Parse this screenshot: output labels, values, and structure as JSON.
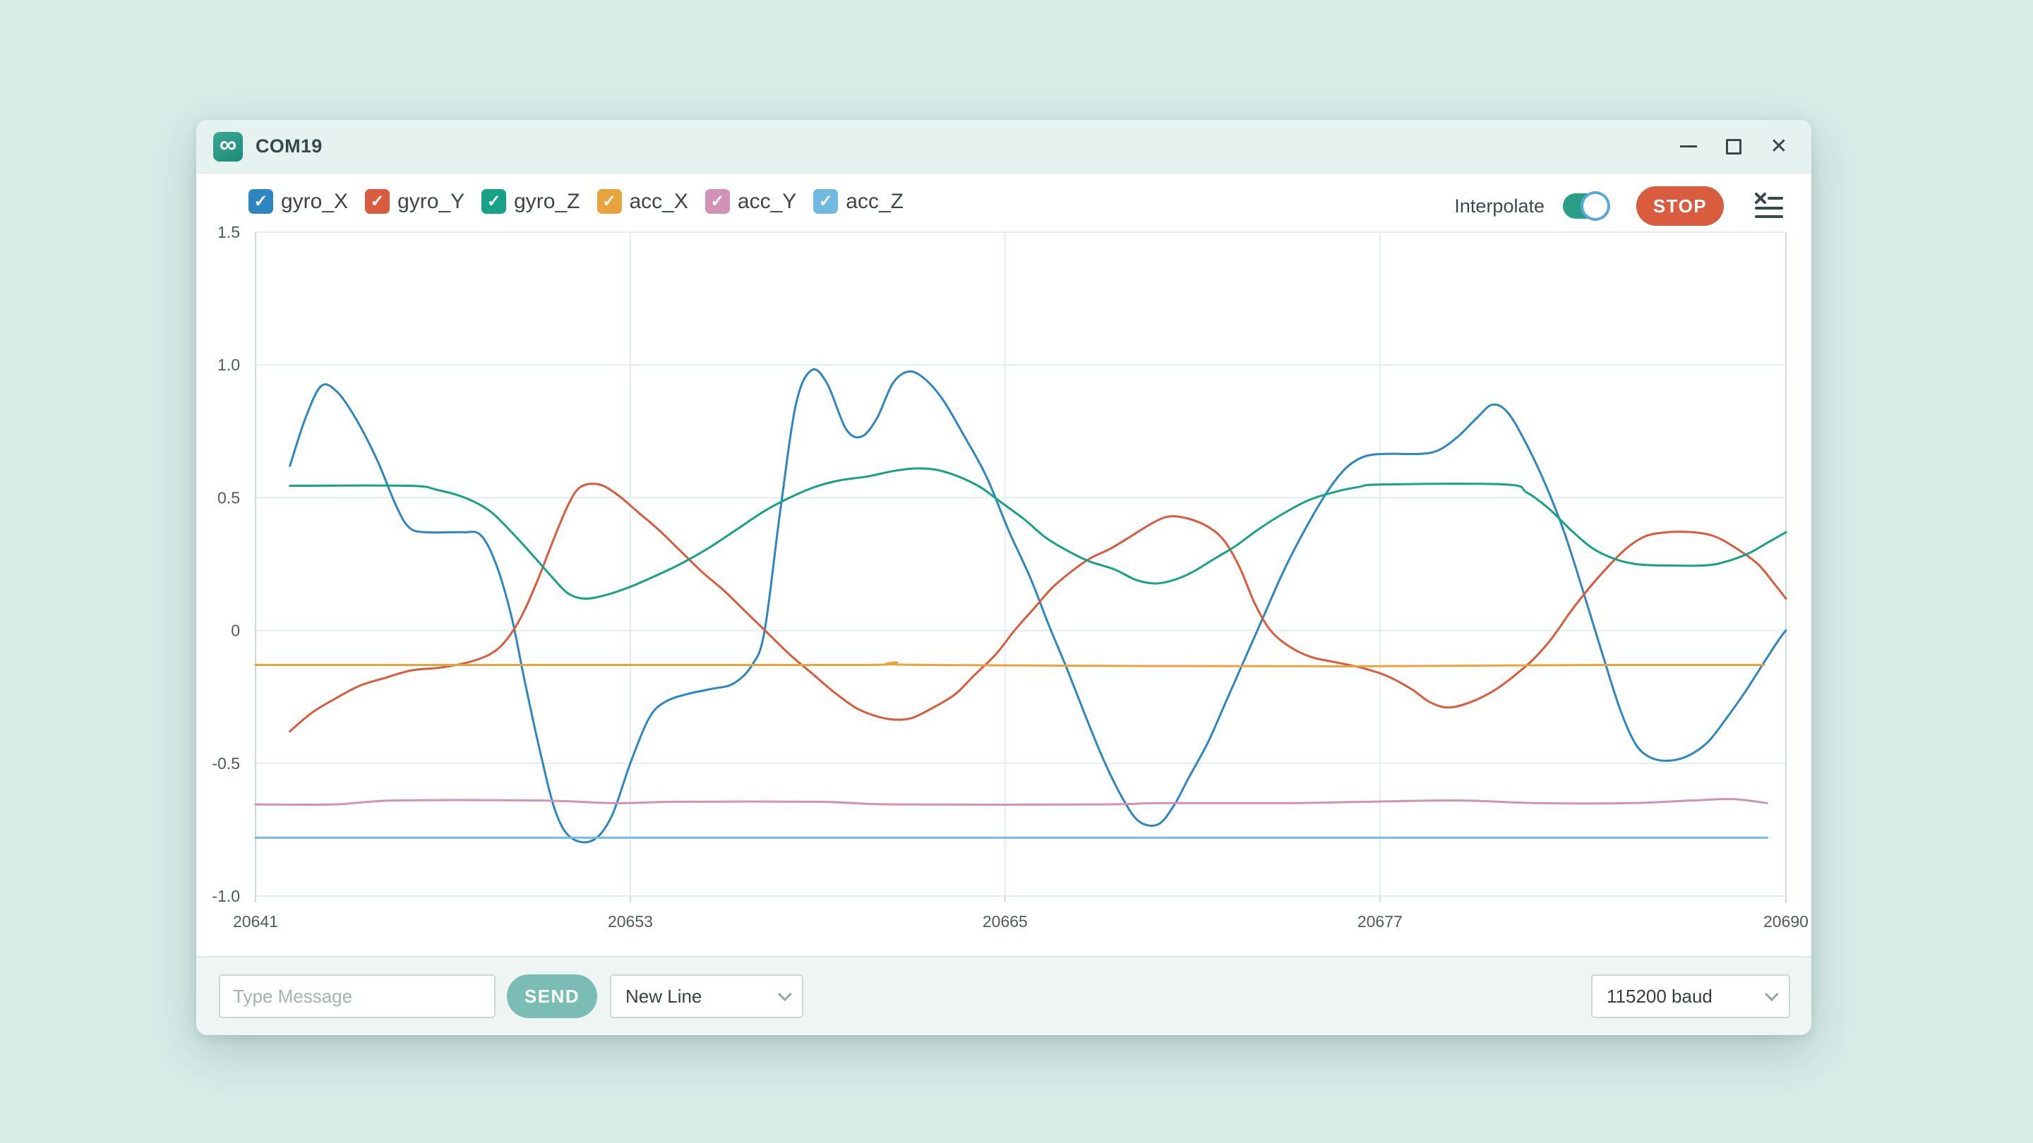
{
  "titlebar": {
    "title": "COM19"
  },
  "icons": {
    "app_symbol": "∞",
    "check_symbol": "✓",
    "close_symbol": "✕"
  },
  "toolbar": {
    "interpolate_label": "Interpolate",
    "interpolate_on": true,
    "stop_label": "STOP"
  },
  "bottom_bar": {
    "message_placeholder": "Type Message",
    "send_label": "SEND",
    "line_ending": "New Line",
    "baud": "115200 baud"
  },
  "colors": {
    "window_chrome": "#e6f2ef",
    "desktop": "#d8ece8",
    "grid": "#e4eeee",
    "axis": "#c9dcde",
    "tick_text": "#4e5b5e",
    "toggle_on": "#2a9f88",
    "stop_button": "#d85c3d",
    "send_button": "#79bdb4"
  },
  "chart_data": {
    "type": "line",
    "title": "",
    "xlabel": "",
    "ylabel": "",
    "grid": true,
    "legend_position": "top",
    "xlim": [
      20641,
      20690
    ],
    "ylim": [
      -1.0,
      1.5
    ],
    "xticks": [
      {
        "v": 20641,
        "label": "20641"
      },
      {
        "v": 20653,
        "label": "20653"
      },
      {
        "v": 20665,
        "label": "20665"
      },
      {
        "v": 20677,
        "label": "20677"
      },
      {
        "v": 20690,
        "label": "20690"
      }
    ],
    "yticks": [
      {
        "v": 1.5,
        "label": "1.5"
      },
      {
        "v": 1.0,
        "label": "1.0"
      },
      {
        "v": 0.5,
        "label": "0.5"
      },
      {
        "v": 0,
        "label": "0"
      },
      {
        "v": -0.5,
        "label": "-0.5"
      },
      {
        "v": -1.0,
        "label": "-1.0"
      }
    ],
    "series": [
      {
        "name": "gyro_X",
        "color": "#2e86c1",
        "checked": true,
        "points": [
          [
            20642.1,
            0.62
          ],
          [
            20642.6,
            0.8
          ],
          [
            20643.1,
            0.92
          ],
          [
            20643.6,
            0.9
          ],
          [
            20644.2,
            0.8
          ],
          [
            20644.9,
            0.64
          ],
          [
            20645.5,
            0.47
          ],
          [
            20645.9,
            0.39
          ],
          [
            20646.4,
            0.37
          ],
          [
            20647.6,
            0.37
          ],
          [
            20648.2,
            0.36
          ],
          [
            20648.7,
            0.25
          ],
          [
            20649.2,
            0.05
          ],
          [
            20649.6,
            -0.18
          ],
          [
            20650.1,
            -0.45
          ],
          [
            20650.6,
            -0.68
          ],
          [
            20651.1,
            -0.78
          ],
          [
            20651.8,
            -0.79
          ],
          [
            20652.4,
            -0.7
          ],
          [
            20653.0,
            -0.5
          ],
          [
            20653.6,
            -0.33
          ],
          [
            20654.1,
            -0.27
          ],
          [
            20654.8,
            -0.24
          ],
          [
            20655.6,
            -0.22
          ],
          [
            20656.3,
            -0.2
          ],
          [
            20656.9,
            -0.13
          ],
          [
            20657.3,
            0.0
          ],
          [
            20657.8,
            0.45
          ],
          [
            20658.3,
            0.85
          ],
          [
            20658.8,
            0.98
          ],
          [
            20659.3,
            0.93
          ],
          [
            20659.9,
            0.76
          ],
          [
            20660.4,
            0.73
          ],
          [
            20660.9,
            0.8
          ],
          [
            20661.4,
            0.93
          ],
          [
            20661.9,
            0.975
          ],
          [
            20662.4,
            0.95
          ],
          [
            20663.0,
            0.87
          ],
          [
            20663.7,
            0.73
          ],
          [
            20664.4,
            0.58
          ],
          [
            20665.1,
            0.38
          ],
          [
            20665.8,
            0.2
          ],
          [
            20666.4,
            0.02
          ],
          [
            20667.0,
            -0.15
          ],
          [
            20667.6,
            -0.33
          ],
          [
            20668.2,
            -0.5
          ],
          [
            20668.8,
            -0.64
          ],
          [
            20669.3,
            -0.72
          ],
          [
            20669.9,
            -0.73
          ],
          [
            20670.4,
            -0.66
          ],
          [
            20670.9,
            -0.55
          ],
          [
            20671.5,
            -0.42
          ],
          [
            20672.1,
            -0.26
          ],
          [
            20672.7,
            -0.1
          ],
          [
            20673.3,
            0.06
          ],
          [
            20673.9,
            0.22
          ],
          [
            20674.6,
            0.38
          ],
          [
            20675.3,
            0.52
          ],
          [
            20675.9,
            0.61
          ],
          [
            20676.5,
            0.655
          ],
          [
            20677.2,
            0.665
          ],
          [
            20678.3,
            0.665
          ],
          [
            20678.9,
            0.68
          ],
          [
            20679.5,
            0.73
          ],
          [
            20680.1,
            0.8
          ],
          [
            20680.6,
            0.85
          ],
          [
            20681.1,
            0.82
          ],
          [
            20681.7,
            0.7
          ],
          [
            20682.3,
            0.55
          ],
          [
            20682.9,
            0.37
          ],
          [
            20683.5,
            0.15
          ],
          [
            20684.1,
            -0.08
          ],
          [
            20684.7,
            -0.3
          ],
          [
            20685.2,
            -0.43
          ],
          [
            20685.7,
            -0.48
          ],
          [
            20686.3,
            -0.49
          ],
          [
            20686.9,
            -0.47
          ],
          [
            20687.5,
            -0.42
          ],
          [
            20688.1,
            -0.33
          ],
          [
            20688.7,
            -0.23
          ],
          [
            20689.3,
            -0.12
          ],
          [
            20689.8,
            -0.03
          ],
          [
            20690,
            0.0
          ]
        ]
      },
      {
        "name": "gyro_Y",
        "color": "#d85c3d",
        "checked": true,
        "points": [
          [
            20642.1,
            -0.38
          ],
          [
            20642.8,
            -0.31
          ],
          [
            20643.5,
            -0.26
          ],
          [
            20644.3,
            -0.21
          ],
          [
            20645.1,
            -0.18
          ],
          [
            20646.0,
            -0.15
          ],
          [
            20646.9,
            -0.14
          ],
          [
            20647.8,
            -0.12
          ],
          [
            20648.5,
            -0.09
          ],
          [
            20649.0,
            -0.04
          ],
          [
            20649.5,
            0.05
          ],
          [
            20650.0,
            0.18
          ],
          [
            20650.5,
            0.33
          ],
          [
            20651.0,
            0.47
          ],
          [
            20651.4,
            0.54
          ],
          [
            20652.0,
            0.55
          ],
          [
            20652.6,
            0.51
          ],
          [
            20653.2,
            0.45
          ],
          [
            20653.9,
            0.38
          ],
          [
            20654.6,
            0.3
          ],
          [
            20655.3,
            0.22
          ],
          [
            20656.0,
            0.15
          ],
          [
            20656.7,
            0.07
          ],
          [
            20657.4,
            -0.01
          ],
          [
            20658.1,
            -0.09
          ],
          [
            20658.8,
            -0.16
          ],
          [
            20659.5,
            -0.23
          ],
          [
            20660.2,
            -0.29
          ],
          [
            20660.8,
            -0.32
          ],
          [
            20661.4,
            -0.335
          ],
          [
            20662.0,
            -0.33
          ],
          [
            20662.7,
            -0.29
          ],
          [
            20663.4,
            -0.24
          ],
          [
            20664.0,
            -0.17
          ],
          [
            20664.7,
            -0.09
          ],
          [
            20665.3,
            0.0
          ],
          [
            20665.9,
            0.08
          ],
          [
            20666.5,
            0.16
          ],
          [
            20667.1,
            0.22
          ],
          [
            20667.7,
            0.27
          ],
          [
            20668.4,
            0.31
          ],
          [
            20669.1,
            0.36
          ],
          [
            20669.8,
            0.41
          ],
          [
            20670.3,
            0.43
          ],
          [
            20670.9,
            0.42
          ],
          [
            20671.5,
            0.39
          ],
          [
            20672.0,
            0.34
          ],
          [
            20672.5,
            0.24
          ],
          [
            20673.0,
            0.1
          ],
          [
            20673.5,
            0.0
          ],
          [
            20674.1,
            -0.06
          ],
          [
            20674.8,
            -0.1
          ],
          [
            20675.6,
            -0.12
          ],
          [
            20676.4,
            -0.14
          ],
          [
            20677.2,
            -0.17
          ],
          [
            20678.0,
            -0.22
          ],
          [
            20678.6,
            -0.27
          ],
          [
            20679.2,
            -0.29
          ],
          [
            20679.9,
            -0.27
          ],
          [
            20680.6,
            -0.23
          ],
          [
            20681.2,
            -0.18
          ],
          [
            20681.9,
            -0.11
          ],
          [
            20682.5,
            -0.03
          ],
          [
            20683.1,
            0.07
          ],
          [
            20683.7,
            0.16
          ],
          [
            20684.3,
            0.24
          ],
          [
            20684.9,
            0.31
          ],
          [
            20685.5,
            0.355
          ],
          [
            20686.2,
            0.37
          ],
          [
            20687.0,
            0.37
          ],
          [
            20687.7,
            0.355
          ],
          [
            20688.4,
            0.31
          ],
          [
            20689.1,
            0.25
          ],
          [
            20689.6,
            0.18
          ],
          [
            20690,
            0.12
          ]
        ]
      },
      {
        "name": "gyro_Z",
        "color": "#17a287",
        "checked": true,
        "points": [
          [
            20642.1,
            0.545
          ],
          [
            20645.9,
            0.545
          ],
          [
            20646.8,
            0.53
          ],
          [
            20647.7,
            0.5
          ],
          [
            20648.5,
            0.45
          ],
          [
            20649.2,
            0.37
          ],
          [
            20649.9,
            0.28
          ],
          [
            20650.5,
            0.2
          ],
          [
            20651.0,
            0.14
          ],
          [
            20651.5,
            0.12
          ],
          [
            20652.1,
            0.13
          ],
          [
            20652.9,
            0.16
          ],
          [
            20653.7,
            0.2
          ],
          [
            20654.6,
            0.25
          ],
          [
            20655.5,
            0.31
          ],
          [
            20656.4,
            0.38
          ],
          [
            20657.3,
            0.45
          ],
          [
            20658.1,
            0.5
          ],
          [
            20658.9,
            0.54
          ],
          [
            20659.7,
            0.565
          ],
          [
            20660.6,
            0.58
          ],
          [
            20661.4,
            0.6
          ],
          [
            20662.1,
            0.61
          ],
          [
            20662.8,
            0.605
          ],
          [
            20663.5,
            0.58
          ],
          [
            20664.2,
            0.54
          ],
          [
            20664.9,
            0.48
          ],
          [
            20665.6,
            0.42
          ],
          [
            20666.3,
            0.35
          ],
          [
            20667.0,
            0.3
          ],
          [
            20667.7,
            0.26
          ],
          [
            20668.5,
            0.23
          ],
          [
            20669.2,
            0.19
          ],
          [
            20669.8,
            0.177
          ],
          [
            20670.4,
            0.19
          ],
          [
            20671.0,
            0.22
          ],
          [
            20671.7,
            0.27
          ],
          [
            20672.4,
            0.32
          ],
          [
            20673.1,
            0.38
          ],
          [
            20673.9,
            0.44
          ],
          [
            20674.7,
            0.49
          ],
          [
            20675.5,
            0.52
          ],
          [
            20676.3,
            0.54
          ],
          [
            20677.1,
            0.55
          ],
          [
            20681.0,
            0.55
          ],
          [
            20681.7,
            0.52
          ],
          [
            20682.4,
            0.46
          ],
          [
            20683.1,
            0.38
          ],
          [
            20683.8,
            0.31
          ],
          [
            20684.5,
            0.27
          ],
          [
            20685.2,
            0.25
          ],
          [
            20686.0,
            0.245
          ],
          [
            20687.4,
            0.245
          ],
          [
            20688.1,
            0.26
          ],
          [
            20688.8,
            0.29
          ],
          [
            20689.4,
            0.33
          ],
          [
            20690,
            0.37
          ]
        ]
      },
      {
        "name": "acc_X",
        "color": "#e9a33d",
        "checked": true,
        "points": [
          [
            20641,
            -0.13
          ],
          [
            20652,
            -0.13
          ],
          [
            20660.5,
            -0.13
          ],
          [
            20661.5,
            -0.12
          ],
          [
            20662.5,
            -0.13
          ],
          [
            20676,
            -0.135
          ],
          [
            20684,
            -0.13
          ],
          [
            20689.3,
            -0.13
          ]
        ]
      },
      {
        "name": "acc_Y",
        "color": "#d391b5",
        "checked": true,
        "points": [
          [
            20641,
            -0.655
          ],
          [
            20643.5,
            -0.655
          ],
          [
            20645.5,
            -0.64
          ],
          [
            20650,
            -0.64
          ],
          [
            20652.5,
            -0.65
          ],
          [
            20654.5,
            -0.645
          ],
          [
            20659,
            -0.645
          ],
          [
            20661.5,
            -0.655
          ],
          [
            20668,
            -0.655
          ],
          [
            20670,
            -0.65
          ],
          [
            20674,
            -0.65
          ],
          [
            20676.5,
            -0.645
          ],
          [
            20679.5,
            -0.64
          ],
          [
            20682,
            -0.65
          ],
          [
            20685,
            -0.65
          ],
          [
            20687,
            -0.64
          ],
          [
            20688.3,
            -0.635
          ],
          [
            20689.4,
            -0.65
          ]
        ]
      },
      {
        "name": "acc_Z",
        "color": "#6fb9e3",
        "checked": true,
        "points": [
          [
            20641,
            -0.78
          ],
          [
            20655,
            -0.78
          ],
          [
            20670,
            -0.78
          ],
          [
            20689.4,
            -0.78
          ]
        ]
      }
    ]
  }
}
